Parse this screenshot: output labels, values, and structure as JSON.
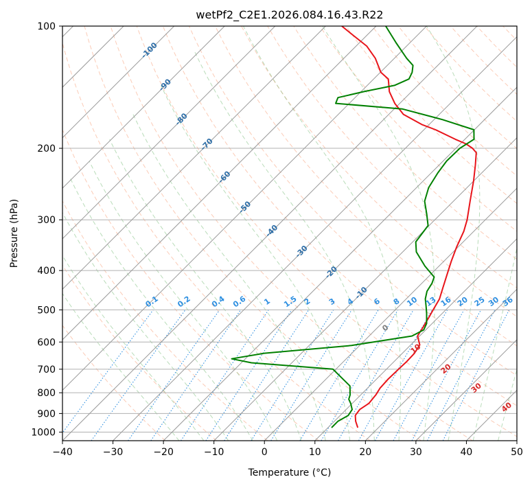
{
  "chart_data": {
    "type": "line",
    "title": "wetPf2_C2E1.2026.084.16.43.R22",
    "xlabel": "Temperature (°C)",
    "ylabel": "Pressure (hPa)",
    "xlim": [
      -40,
      50
    ],
    "ylim": [
      1050,
      100
    ],
    "y_scale": "log",
    "x_ticks": [
      "−40",
      "−30",
      "−20",
      "−10",
      "0",
      "10",
      "20",
      "30",
      "40",
      "50"
    ],
    "y_ticks": [
      "100",
      "200",
      "300",
      "400",
      "500",
      "600",
      "700",
      "800",
      "900",
      "1000"
    ],
    "grid": true,
    "colors": {
      "temperature": "#e8141a",
      "dewpoint": "#008000",
      "isotherm_label": "#2f6fa8",
      "mixing_ratio_label": "#2e8fe0",
      "moist_adiabat_label_red": "#d62728",
      "moist_adiabat_label_gray": "#7f7f7f"
    },
    "series": [
      {
        "role": "temperature",
        "points": [
          [
            15.9,
            975
          ],
          [
            14.2,
            940
          ],
          [
            13.0,
            910
          ],
          [
            12.7,
            880
          ],
          [
            13.3,
            850
          ],
          [
            13.0,
            810
          ],
          [
            12.5,
            780
          ],
          [
            12.3,
            740
          ],
          [
            12.4,
            700
          ],
          [
            12.5,
            670
          ],
          [
            12.4,
            640
          ],
          [
            11.8,
            610
          ],
          [
            9.6,
            580
          ],
          [
            8.9,
            550
          ],
          [
            8.1,
            520
          ],
          [
            7.5,
            500
          ],
          [
            6.6,
            470
          ],
          [
            5.0,
            440
          ],
          [
            3.3,
            410
          ],
          [
            1.5,
            380
          ],
          [
            -0.3,
            350
          ],
          [
            -2.0,
            320
          ],
          [
            -3.6,
            300
          ],
          [
            -6.7,
            270
          ],
          [
            -10.1,
            240
          ],
          [
            -12.8,
            220
          ],
          [
            -15.1,
            205
          ],
          [
            -16.7,
            200
          ],
          [
            -18.9,
            195
          ],
          [
            -21.9,
            190
          ],
          [
            -27.7,
            180
          ],
          [
            -31.3,
            175
          ],
          [
            -37.1,
            165
          ],
          [
            -41.0,
            155
          ],
          [
            -44.4,
            145
          ],
          [
            -47.1,
            135
          ],
          [
            -49.9,
            130
          ],
          [
            -53.8,
            120
          ],
          [
            -57.9,
            112
          ],
          [
            -63.0,
            105
          ],
          [
            -66.8,
            100
          ]
        ]
      },
      {
        "role": "dewpoint",
        "points": [
          [
            10.7,
            975
          ],
          [
            10.7,
            940
          ],
          [
            11.6,
            910
          ],
          [
            11.2,
            880
          ],
          [
            9.7,
            850
          ],
          [
            8.5,
            830
          ],
          [
            7.9,
            810
          ],
          [
            6.1,
            770
          ],
          [
            -0.6,
            700
          ],
          [
            -18.0,
            675
          ],
          [
            -22.7,
            660
          ],
          [
            -17.5,
            640
          ],
          [
            -1.6,
            612
          ],
          [
            8.5,
            580
          ],
          [
            9.6,
            560
          ],
          [
            8.9,
            540
          ],
          [
            6.9,
            510
          ],
          [
            5.4,
            490
          ],
          [
            3.8,
            470
          ],
          [
            2.6,
            450
          ],
          [
            2.0,
            430
          ],
          [
            1.2,
            415
          ],
          [
            -2.8,
            390
          ],
          [
            -7.3,
            360
          ],
          [
            -9.4,
            340
          ],
          [
            -10.2,
            310
          ],
          [
            -12.8,
            290
          ],
          [
            -15.7,
            270
          ],
          [
            -17.6,
            250
          ],
          [
            -18.7,
            230
          ],
          [
            -19.3,
            215
          ],
          [
            -19.2,
            200
          ],
          [
            -18.2,
            190
          ],
          [
            -20.1,
            180
          ],
          [
            -28.3,
            170
          ],
          [
            -38.4,
            160
          ],
          [
            -52.7,
            155
          ],
          [
            -53.4,
            150
          ],
          [
            -49.4,
            145
          ],
          [
            -44.6,
            140
          ],
          [
            -43.0,
            135
          ],
          [
            -43.7,
            130
          ],
          [
            -44.9,
            125
          ],
          [
            -47.6,
            120
          ],
          [
            -52.7,
            110
          ],
          [
            -58.1,
            100
          ]
        ]
      }
    ],
    "isotherm_labels": [
      "-100",
      "-90",
      "-80",
      "-70",
      "-60",
      "-50",
      "-40",
      "-30",
      "-20",
      "-10"
    ],
    "mixing_ratio_labels": [
      "0.1",
      "0.2",
      "0.4",
      "0.6",
      "1",
      "1.5",
      "2",
      "3",
      "4",
      "6",
      "8",
      "10",
      "13",
      "16",
      "20",
      "25",
      "30",
      "36"
    ],
    "moist_adiabat_labels": [
      "0",
      "10",
      "20",
      "30",
      "40"
    ]
  }
}
